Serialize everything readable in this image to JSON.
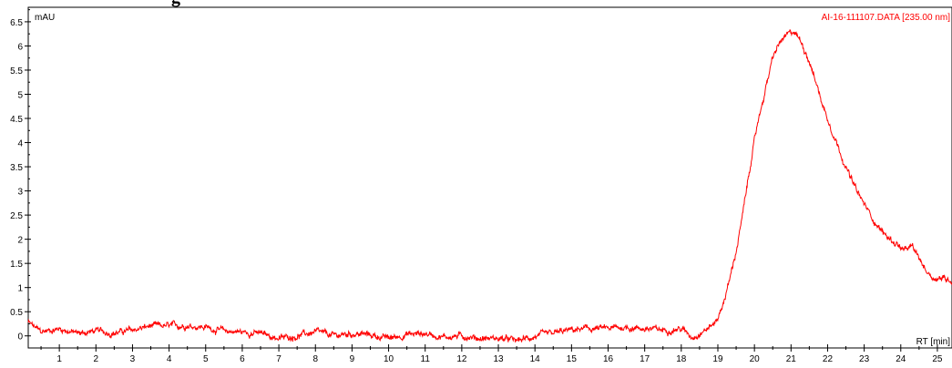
{
  "header": {
    "cut_title": "g"
  },
  "chart_data": {
    "type": "line",
    "title": "",
    "ylabel": "mAU",
    "xlabel": "RT [min]",
    "xlim": [
      0.15,
      25.4
    ],
    "ylim": [
      -0.25,
      6.8
    ],
    "x_ticks": [
      1,
      2,
      3,
      4,
      5,
      6,
      7,
      8,
      9,
      10,
      11,
      12,
      13,
      14,
      15,
      16,
      17,
      18,
      19,
      20,
      21,
      22,
      23,
      24,
      25
    ],
    "y_ticks": [
      0,
      0.5,
      1,
      1.5,
      2,
      2.5,
      3,
      3.5,
      4,
      4.5,
      5,
      5.5,
      6,
      6.5
    ],
    "y_tick_labels": [
      "0",
      "0.5",
      "1",
      "1.5",
      "2",
      "2.5",
      "3",
      "3.5",
      "4",
      "4.5",
      "5",
      "5.5",
      "6",
      "6.5"
    ],
    "grid": false,
    "series": [
      {
        "name": "AI-16-111107.DATA [235.00 nm]",
        "color": "#ff0000",
        "x": [
          0.15,
          0.5,
          1.0,
          1.5,
          2.0,
          2.5,
          3.0,
          3.5,
          4.0,
          4.5,
          5.0,
          5.5,
          6.0,
          6.5,
          7.0,
          7.5,
          8.0,
          8.5,
          9.0,
          9.5,
          10.0,
          10.5,
          11.0,
          11.5,
          12.0,
          12.5,
          13.0,
          13.5,
          14.0,
          14.5,
          15.0,
          15.5,
          16.0,
          16.5,
          17.0,
          17.5,
          18.0,
          18.3,
          18.6,
          18.9,
          19.1,
          19.3,
          19.5,
          19.7,
          19.9,
          20.1,
          20.3,
          20.5,
          20.7,
          20.9,
          21.1,
          21.3,
          21.5,
          21.7,
          21.9,
          22.1,
          22.3,
          22.5,
          22.7,
          22.9,
          23.1,
          23.3,
          23.5,
          23.7,
          23.9,
          24.1,
          24.3,
          24.5,
          24.7,
          24.9,
          25.1,
          25.4
        ],
        "y": [
          0.28,
          0.08,
          0.15,
          0.05,
          0.1,
          0.06,
          0.12,
          0.2,
          0.2,
          0.22,
          0.18,
          0.1,
          0.08,
          0.05,
          -0.05,
          0.0,
          0.08,
          0.0,
          0.05,
          0.02,
          -0.05,
          0.03,
          0.05,
          -0.02,
          0.0,
          -0.05,
          -0.05,
          -0.1,
          -0.02,
          0.05,
          0.12,
          0.15,
          0.15,
          0.18,
          0.15,
          0.12,
          0.15,
          -0.02,
          0.1,
          0.25,
          0.55,
          1.1,
          1.75,
          2.6,
          3.6,
          4.45,
          5.1,
          5.75,
          6.08,
          6.22,
          6.3,
          6.05,
          5.7,
          5.2,
          4.7,
          4.3,
          3.9,
          3.5,
          3.15,
          2.85,
          2.6,
          2.35,
          2.15,
          2.0,
          1.9,
          1.75,
          1.85,
          1.6,
          1.35,
          1.2,
          1.2,
          1.15
        ]
      }
    ]
  }
}
